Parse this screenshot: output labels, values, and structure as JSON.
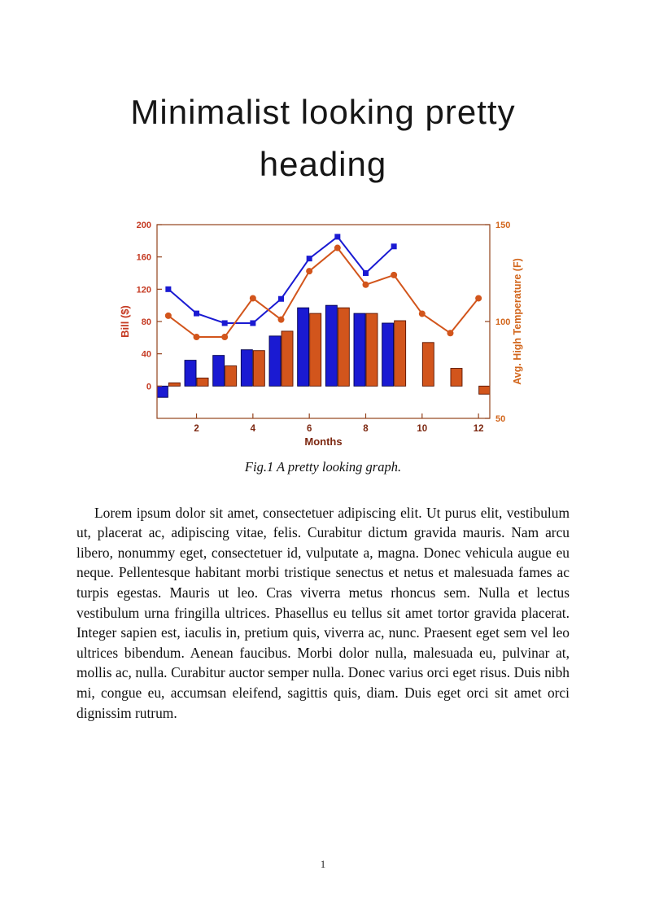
{
  "page": {
    "heading_line1": "Minimalist looking pretty",
    "heading_line2": "heading",
    "figure_caption": "Fig.1 A pretty looking graph.",
    "body_paragraph": "Lorem ipsum dolor sit amet, consectetuer adipiscing elit. Ut purus elit, vestibulum ut, placerat ac, adipiscing vitae, felis. Curabitur dictum gravida mauris. Nam arcu libero, nonummy eget, consectetuer id, vulputate a, magna. Donec vehicula augue eu neque. Pellentesque habitant morbi tristique senectus et netus et malesuada fames ac turpis egestas. Mauris ut leo. Cras viverra metus rhoncus sem. Nulla et lectus vestibulum urna fringilla ultrices. Phasellus eu tellus sit amet tortor gravida placerat. Integer sapien est, iaculis in, pretium quis, viverra ac, nunc. Praesent eget sem vel leo ultrices bibendum. Aenean faucibus. Morbi dolor nulla, malesuada eu, pulvinar at, mollis ac, nulla. Curabitur auctor semper nulla. Donec varius orci eget risus. Duis nibh mi, congue eu, accumsan eleifend, sagittis quis, diam. Duis eget orci sit amet orci dignissim rutrum.",
    "page_number": "1"
  },
  "chart_data": {
    "type": "combo",
    "title": "",
    "xlabel": "Months",
    "ylabel_left": "Bill ($)",
    "ylabel_right": "Avg. High Temperature (F)",
    "months": [
      1,
      2,
      3,
      4,
      5,
      6,
      7,
      8,
      9,
      10,
      11,
      12
    ],
    "x_ticks": [
      2,
      4,
      6,
      8,
      10,
      12
    ],
    "left_ticks": [
      0,
      40,
      80,
      120,
      160,
      200
    ],
    "right_ticks": [
      50,
      100,
      150
    ],
    "xlim": [
      0.6,
      12.4
    ],
    "ylim_left": [
      -40,
      200
    ],
    "ylim_right": [
      50,
      150
    ],
    "grid": false,
    "legend": "none",
    "series": [
      {
        "name": "bill-bars-blue",
        "type": "bar",
        "axis": "left",
        "color": "#1a1ad2",
        "edge": "#00004d",
        "values": [
          -14,
          32,
          38,
          45,
          62,
          97,
          100,
          90,
          78,
          null,
          null,
          null
        ]
      },
      {
        "name": "bill-bars-orange",
        "type": "bar",
        "axis": "left",
        "color": "#d2551c",
        "edge": "#5a1400",
        "values": [
          4,
          10,
          25,
          44,
          68,
          90,
          97,
          90,
          81,
          54,
          22,
          -10
        ]
      },
      {
        "name": "bill-line-blue",
        "type": "line",
        "marker": "square",
        "axis": "left",
        "color": "#1a1ad2",
        "values": [
          120,
          90,
          78,
          78,
          108,
          158,
          185,
          140,
          173,
          null,
          null,
          null
        ]
      },
      {
        "name": "temp-line-orange",
        "type": "line",
        "marker": "circle",
        "axis": "right",
        "color": "#d2551c",
        "values": [
          103,
          92,
          92,
          112,
          101,
          126,
          138,
          119,
          124,
          104,
          94,
          112
        ]
      }
    ],
    "colors": {
      "left_axis": "#c53a22",
      "right_axis": "#d2661c",
      "x_axis": "#7c2710",
      "box": "#93421c"
    }
  }
}
